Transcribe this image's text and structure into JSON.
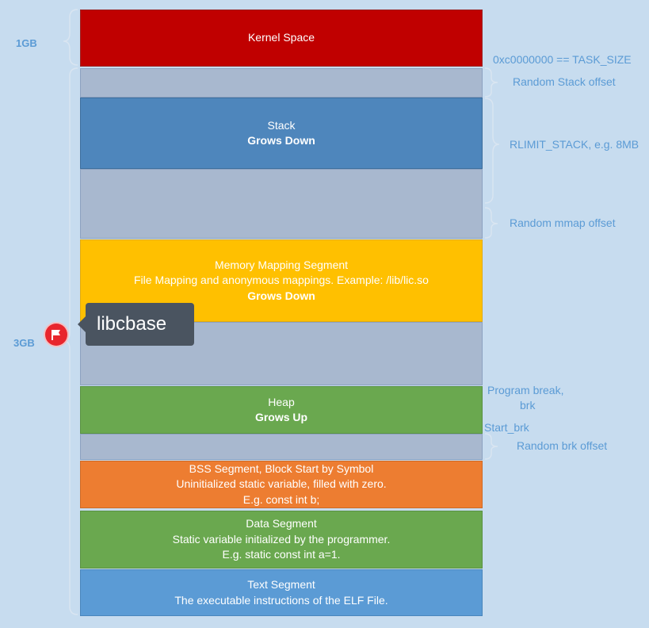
{
  "segments": {
    "kernel": {
      "line1": "Kernel Space"
    },
    "stack": {
      "line1": "Stack",
      "line2": "Grows Down"
    },
    "mmap": {
      "line1": "Memory Mapping Segment",
      "line2": "File Mapping and anonymous mappings. Example: /lib/lic.so",
      "line3": "Grows Down"
    },
    "heap": {
      "line1": "Heap",
      "line2": "Grows Up"
    },
    "bss": {
      "line1": "BSS Segment, Block Start by Symbol",
      "line2": "Uninitialized static variable, filled with zero.",
      "line3": "E.g. const int b;"
    },
    "data": {
      "line1": "Data Segment",
      "line2": "Static variable initialized by the programmer.",
      "line3": "E.g. static const int a=1."
    },
    "text": {
      "line1": "Text Segment",
      "line2": "The executable instructions of the ELF File."
    }
  },
  "annotations": {
    "task_size": "0xc0000000 == TASK_SIZE",
    "random_stack_offset": "Random Stack offset",
    "rlimit_stack": "RLIMIT_STACK, e.g. 8MB",
    "random_mmap_offset": "Random mmap offset",
    "program_break_line1": "Program break,",
    "program_break_line2": "brk",
    "start_brk": "Start_brk",
    "random_brk_offset": "Random brk offset"
  },
  "sizes": {
    "kernel": "1GB",
    "user": "3GB"
  },
  "tooltip": {
    "text": "libcbase"
  },
  "icons": {
    "flag": "flag-icon"
  },
  "colors": {
    "kernel": "#c00000",
    "stack": "#4e86bc",
    "gap": "#a8b8cf",
    "mmap": "#ffc000",
    "heap": "#6aa84f",
    "bss": "#ed7d31",
    "data": "#6aa84f",
    "text": "#5b9bd5",
    "annotation": "#5b9bd5",
    "flag": "#e8262d"
  }
}
